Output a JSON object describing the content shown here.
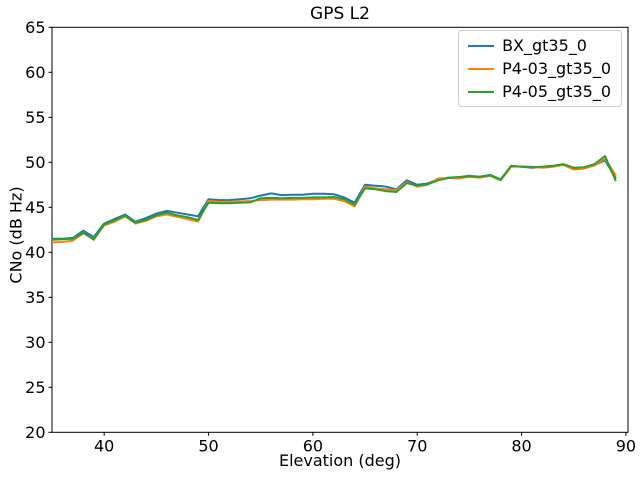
{
  "chart_data": {
    "type": "line",
    "title": "GPS L2",
    "xlabel": "Elevation (deg)",
    "ylabel": "CNo (dB Hz)",
    "xlim": [
      35,
      90.2
    ],
    "ylim": [
      20,
      65
    ],
    "xticks": [
      40,
      50,
      60,
      70,
      80,
      90
    ],
    "yticks": [
      20,
      25,
      30,
      35,
      40,
      45,
      50,
      55,
      60,
      65
    ],
    "grid": false,
    "legend_position": "upper right",
    "x": [
      35,
      36,
      37,
      38,
      39,
      40,
      41,
      42,
      43,
      44,
      45,
      46,
      47,
      48,
      49,
      50,
      51,
      52,
      53,
      54,
      55,
      56,
      57,
      58,
      59,
      60,
      61,
      62,
      63,
      64,
      65,
      66,
      67,
      68,
      69,
      70,
      71,
      72,
      73,
      74,
      75,
      76,
      77,
      78,
      79,
      80,
      81,
      82,
      83,
      84,
      85,
      86,
      87,
      88,
      89
    ],
    "series": [
      {
        "name": "BX_gt35_0",
        "color": "#1f77b4",
        "values": [
          41.5,
          41.5,
          41.6,
          42.4,
          41.7,
          43.2,
          43.7,
          44.2,
          43.4,
          43.8,
          44.3,
          44.6,
          44.4,
          44.2,
          44.0,
          45.9,
          45.8,
          45.8,
          45.9,
          46.0,
          46.3,
          46.55,
          46.35,
          46.4,
          46.4,
          46.5,
          46.5,
          46.45,
          46.1,
          45.5,
          47.5,
          47.4,
          47.3,
          47.0,
          48.0,
          47.5,
          47.65,
          48.1,
          48.3,
          48.35,
          48.5,
          48.4,
          48.6,
          48.1,
          49.6,
          49.5,
          49.4,
          49.5,
          49.6,
          49.75,
          49.3,
          49.4,
          49.7,
          50.2,
          48.3
        ]
      },
      {
        "name": "P4-03_gt35_0",
        "color": "#ff7f0e",
        "values": [
          41.1,
          41.15,
          41.3,
          42.1,
          41.5,
          43.0,
          43.4,
          44.0,
          43.2,
          43.5,
          44.0,
          44.2,
          43.95,
          43.7,
          43.4,
          45.7,
          45.6,
          45.6,
          45.65,
          45.7,
          45.8,
          45.85,
          45.85,
          45.85,
          45.9,
          45.9,
          45.95,
          45.95,
          45.7,
          45.1,
          47.3,
          47.1,
          47.0,
          46.9,
          47.8,
          47.3,
          47.5,
          48.2,
          48.25,
          48.2,
          48.4,
          48.3,
          48.5,
          48.0,
          49.5,
          49.55,
          49.5,
          49.4,
          49.5,
          49.7,
          49.2,
          49.3,
          49.65,
          50.4,
          48.6
        ]
      },
      {
        "name": "P4-05_gt35_0",
        "color": "#2ca02c",
        "values": [
          41.4,
          41.45,
          41.5,
          42.2,
          41.4,
          43.1,
          43.55,
          44.05,
          43.3,
          43.6,
          44.1,
          44.4,
          44.1,
          43.9,
          43.6,
          45.5,
          45.45,
          45.45,
          45.5,
          45.55,
          46.0,
          46.05,
          46.0,
          46.05,
          46.05,
          46.1,
          46.1,
          46.15,
          45.9,
          45.3,
          47.1,
          47.0,
          46.8,
          46.7,
          47.7,
          47.4,
          47.55,
          48.0,
          48.25,
          48.35,
          48.45,
          48.4,
          48.55,
          48.05,
          49.6,
          49.5,
          49.45,
          49.5,
          49.6,
          49.8,
          49.4,
          49.45,
          49.8,
          50.7,
          48.0
        ]
      }
    ]
  }
}
